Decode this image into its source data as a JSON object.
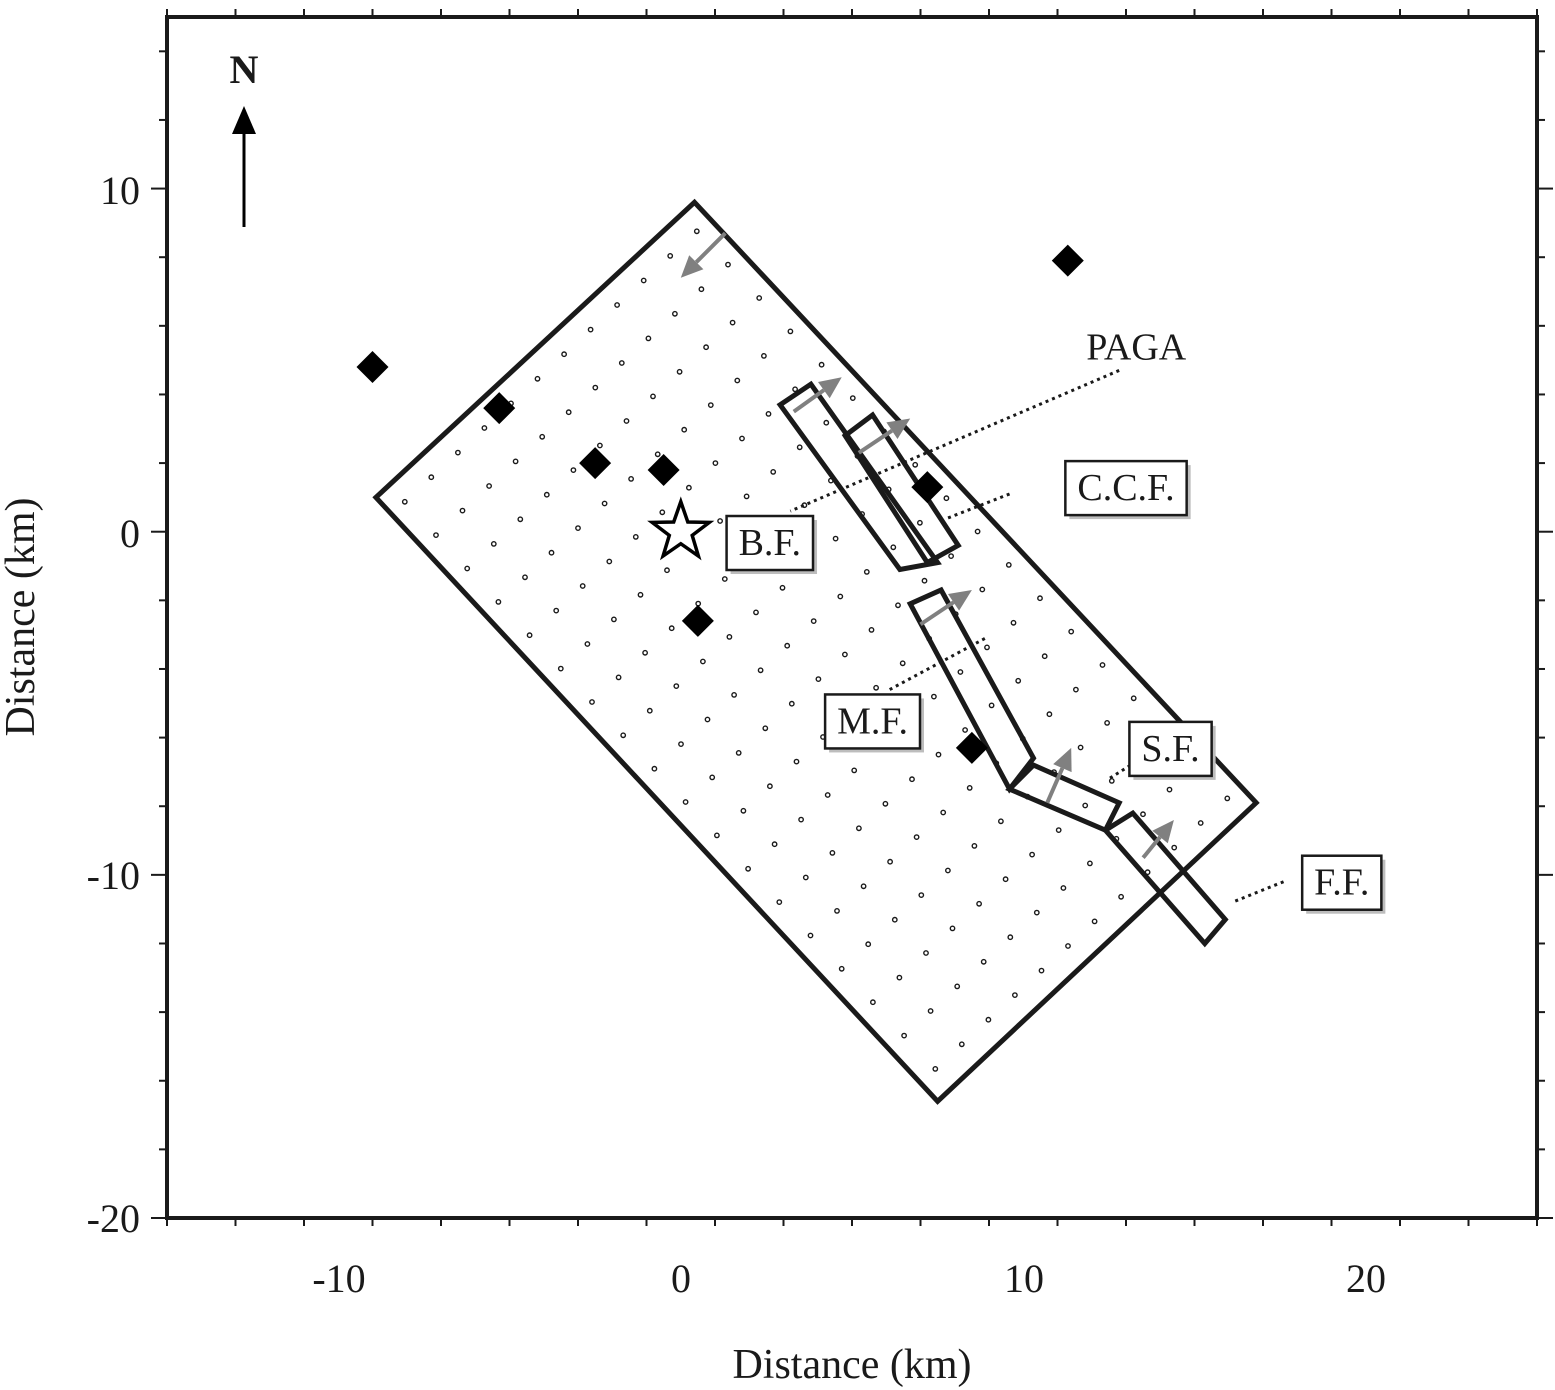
{
  "map": {
    "xlabel": "Distance (km)",
    "ylabel": "Distance (km)",
    "xlim": [
      -15,
      25
    ],
    "ylim": [
      -20,
      15
    ],
    "x_ticks": [
      -10,
      0,
      10,
      20
    ],
    "y_ticks": [
      10,
      0,
      -10,
      -20
    ],
    "x_tick_labels": [
      "-10",
      "0",
      "10",
      "20"
    ],
    "y_tick_labels": [
      "10",
      "0",
      "-10",
      "-20"
    ],
    "north_label": "N",
    "colors": {
      "frame": "#1a1a1a",
      "slip_arrow": "#808080",
      "grid_dot": "#1a1a1a",
      "station": "#000000"
    }
  },
  "model_plane": [
    [
      0.4,
      9.6
    ],
    [
      16.8,
      -7.9
    ],
    [
      7.5,
      -16.6
    ],
    [
      -8.9,
      1.0
    ]
  ],
  "grid_points": {
    "spacing_km": 1.3,
    "along_strike_azimuth_deg": 136,
    "count_along_strike": 18,
    "count_down_dip": 12
  },
  "faults": [
    {
      "name": "B.F.",
      "label": "B.F.",
      "outline": [
        [
          2.9,
          3.7
        ],
        [
          3.8,
          4.3
        ],
        [
          7.5,
          -0.9
        ],
        [
          6.4,
          -1.1
        ]
      ],
      "slip_arrow": [
        [
          3.3,
          3.5
        ],
        [
          4.7,
          4.5
        ]
      ]
    },
    {
      "name": "C.C.F.",
      "label": "C.C.F.",
      "outline": [
        [
          4.8,
          2.8
        ],
        [
          5.6,
          3.4
        ],
        [
          8.1,
          -0.4
        ],
        [
          7.2,
          -0.9
        ]
      ],
      "slip_arrow": [
        [
          5.2,
          2.3
        ],
        [
          6.7,
          3.3
        ]
      ]
    },
    {
      "name": "M.F.",
      "label": "M.F.",
      "outline": [
        [
          6.7,
          -2.1
        ],
        [
          7.6,
          -1.7
        ],
        [
          10.3,
          -6.6
        ],
        [
          9.6,
          -7.5
        ]
      ],
      "slip_arrow": [
        [
          7.0,
          -2.7
        ],
        [
          8.5,
          -1.7
        ]
      ]
    },
    {
      "name": "S.F.",
      "label": "S.F.",
      "outline": [
        [
          9.6,
          -7.5
        ],
        [
          10.3,
          -6.8
        ],
        [
          12.8,
          -7.9
        ],
        [
          12.4,
          -8.7
        ]
      ],
      "slip_arrow": [
        [
          10.7,
          -7.9
        ],
        [
          11.4,
          -6.3
        ]
      ]
    },
    {
      "name": "F.F.",
      "label": "F.F.",
      "outline": [
        [
          12.4,
          -8.7
        ],
        [
          13.2,
          -8.2
        ],
        [
          15.9,
          -11.3
        ],
        [
          15.3,
          -12.0
        ]
      ],
      "slip_arrow": [
        [
          13.5,
          -9.5
        ],
        [
          14.4,
          -8.4
        ]
      ]
    }
  ],
  "top_slip_arrow": [
    [
      1.3,
      8.7
    ],
    [
      0.0,
      7.4
    ]
  ],
  "stations": [
    {
      "x": -9.0,
      "y": 4.8
    },
    {
      "x": -5.3,
      "y": 3.6
    },
    {
      "x": -2.5,
      "y": 2.0
    },
    {
      "x": -0.5,
      "y": 1.8
    },
    {
      "x": 0.5,
      "y": -2.6
    },
    {
      "x": 7.2,
      "y": 1.3
    },
    {
      "x": 11.3,
      "y": 7.9
    },
    {
      "x": 8.5,
      "y": -6.3
    }
  ],
  "epicenter": {
    "x": 0.0,
    "y": 0.0
  },
  "annotations": [
    {
      "text": "PAGA",
      "boxed": false,
      "anchor": [
        13.3,
        5.4
      ],
      "pointer": [
        [
          12.8,
          4.7
        ],
        [
          3.2,
          0.6
        ]
      ]
    },
    {
      "text": "C.C.F.",
      "boxed": true,
      "anchor": [
        13.0,
        1.3
      ],
      "pointer": [
        [
          9.6,
          1.1
        ],
        [
          7.8,
          0.4
        ]
      ]
    },
    {
      "text": "B.F.",
      "boxed": true,
      "anchor": [
        2.6,
        -0.3
      ],
      "pointer": null
    },
    {
      "text": "M.F.",
      "boxed": true,
      "anchor": [
        5.6,
        -5.5
      ],
      "pointer": [
        [
          6.1,
          -4.6
        ],
        [
          8.9,
          -3.1
        ]
      ]
    },
    {
      "text": "S.F.",
      "boxed": true,
      "anchor": [
        14.3,
        -6.3
      ],
      "pointer": [
        [
          13.3,
          -6.7
        ],
        [
          12.5,
          -7.2
        ]
      ]
    },
    {
      "text": "F.F.",
      "boxed": true,
      "anchor": [
        19.3,
        -10.2
      ],
      "pointer": [
        [
          17.6,
          -10.2
        ],
        [
          16.1,
          -10.8
        ]
      ]
    }
  ]
}
